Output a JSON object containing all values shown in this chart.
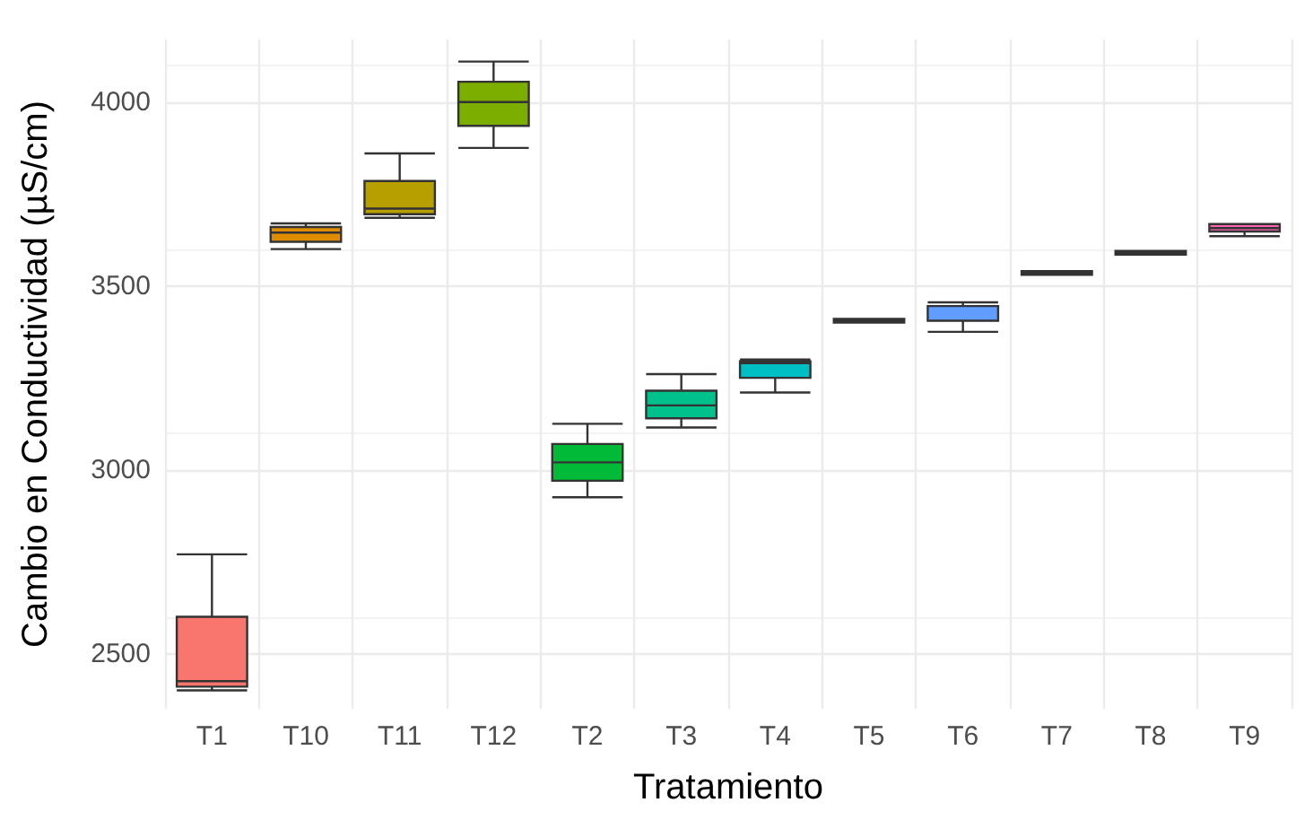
{
  "chart_data": {
    "type": "box",
    "xlabel": "Tratamiento",
    "ylabel": "Cambio en Conductividad (µS/cm)",
    "categories": [
      "T1",
      "T10",
      "T11",
      "T12",
      "T2",
      "T3",
      "T4",
      "T5",
      "T6",
      "T7",
      "T8",
      "T9"
    ],
    "colors": [
      "#f8766d",
      "#de8c00",
      "#b79f00",
      "#7cae00",
      "#00ba38",
      "#00c08b",
      "#00bfc4",
      "#00b4f0",
      "#619cff",
      "#c77cff",
      "#f564e3",
      "#ff64b0"
    ],
    "boxes": [
      {
        "low": 2400,
        "q1": 2410,
        "median": 2425,
        "q3": 2600,
        "high": 2770
      },
      {
        "low": 3600,
        "q1": 3620,
        "median": 3645,
        "q3": 3660,
        "high": 3670
      },
      {
        "low": 3685,
        "q1": 3695,
        "median": 3710,
        "q3": 3785,
        "high": 3860
      },
      {
        "low": 3875,
        "q1": 3935,
        "median": 4000,
        "q3": 4055,
        "high": 4110
      },
      {
        "low": 2925,
        "q1": 2970,
        "median": 3020,
        "q3": 3070,
        "high": 3125
      },
      {
        "low": 3115,
        "q1": 3140,
        "median": 3175,
        "q3": 3215,
        "high": 3260
      },
      {
        "low": 3210,
        "q1": 3250,
        "median": 3290,
        "q3": 3295,
        "high": 3300
      },
      {
        "low": 3400,
        "q1": 3400,
        "median": 3405,
        "q3": 3410,
        "high": 3410
      },
      {
        "low": 3375,
        "q1": 3405,
        "median": 3445,
        "q3": 3445,
        "high": 3455
      },
      {
        "low": 3530,
        "q1": 3530,
        "median": 3535,
        "q3": 3540,
        "high": 3540
      },
      {
        "low": 3585,
        "q1": 3585,
        "median": 3590,
        "q3": 3595,
        "high": 3595
      },
      {
        "low": 3635,
        "q1": 3648,
        "median": 3657,
        "q3": 3668,
        "high": 3668
      }
    ],
    "ylim": [
      2350,
      4170
    ],
    "yticks": [
      2500,
      3000,
      3500,
      4000
    ],
    "grid": true
  }
}
